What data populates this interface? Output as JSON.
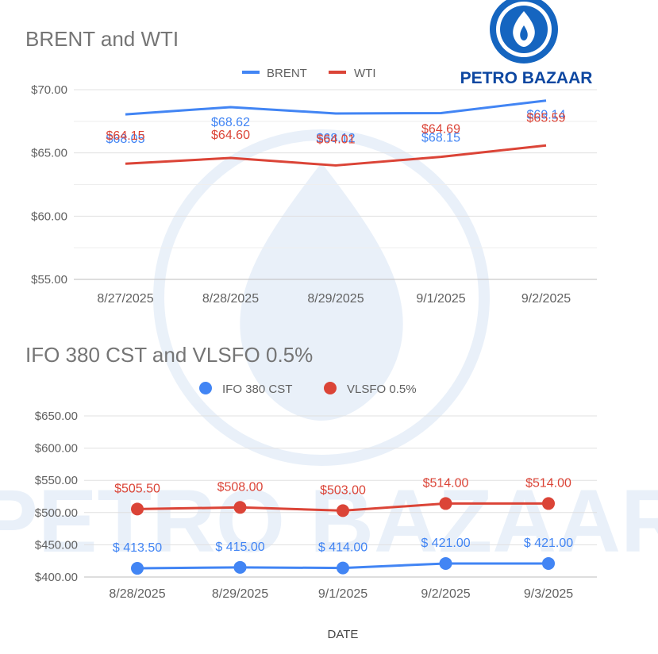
{
  "brand": {
    "name": "PETRO BAZAAR",
    "watermark_text": "PETRO BAZAAR",
    "logo_color": "#1565c0",
    "text_color": "#0d47a1"
  },
  "colors": {
    "blue": "#4285f4",
    "red": "#db4437",
    "grid": "#e0e0e0",
    "axis_text": "#616161",
    "title_text": "#757575"
  },
  "chart_data": [
    {
      "type": "line",
      "title": "BRENT and WTI",
      "categories": [
        "8/27/2025",
        "8/28/2025",
        "8/29/2025",
        "9/1/2025",
        "9/2/2025"
      ],
      "series": [
        {
          "name": "BRENT",
          "color": "#4285f4",
          "values": [
            68.05,
            68.62,
            68.12,
            68.15,
            69.14
          ],
          "labels": [
            "$68.05",
            "$68.62",
            "$68.12",
            "$68.15",
            "$69.14"
          ]
        },
        {
          "name": "WTI",
          "color": "#db4437",
          "values": [
            64.15,
            64.6,
            64.01,
            64.69,
            65.59
          ],
          "labels": [
            "$64.15",
            "$64.60",
            "$64.01",
            "$64.69",
            "$65.59"
          ]
        }
      ],
      "yticks": [
        "$70.00",
        "$65.00",
        "$60.00",
        "$55.00"
      ],
      "ytick_values": [
        70,
        65,
        60,
        55
      ],
      "ylim": [
        55,
        70
      ],
      "minor_step": 2.5,
      "markers": false,
      "legend": "top",
      "xlabel": "",
      "ylabel": ""
    },
    {
      "type": "line",
      "title": "IFO 380 CST and VLSFO 0.5%",
      "categories": [
        "8/28/2025",
        "8/29/2025",
        "9/1/2025",
        "9/2/2025",
        "9/3/2025"
      ],
      "series": [
        {
          "name": "IFO 380 CST",
          "color": "#4285f4",
          "values": [
            413.5,
            415.0,
            414.0,
            421.0,
            421.0
          ],
          "labels": [
            "$ 413.50",
            "$ 415.00",
            "$ 414.00",
            "$ 421.00",
            "$ 421.00"
          ]
        },
        {
          "name": "VLSFO 0.5%",
          "color": "#db4437",
          "values": [
            505.5,
            508.0,
            503.0,
            514.0,
            514.0
          ],
          "labels": [
            "$505.50",
            "$508.00",
            "$503.00",
            "$514.00",
            "$514.00"
          ]
        }
      ],
      "yticks": [
        "$650.00",
        "$600.00",
        "$550.00",
        "$500.00",
        "$450.00",
        "$400.00"
      ],
      "ytick_values": [
        650,
        600,
        550,
        500,
        450,
        400
      ],
      "ylim": [
        400,
        650
      ],
      "minor_step": 0,
      "markers": true,
      "legend": "top",
      "xlabel": "DATE",
      "ylabel": ""
    }
  ]
}
